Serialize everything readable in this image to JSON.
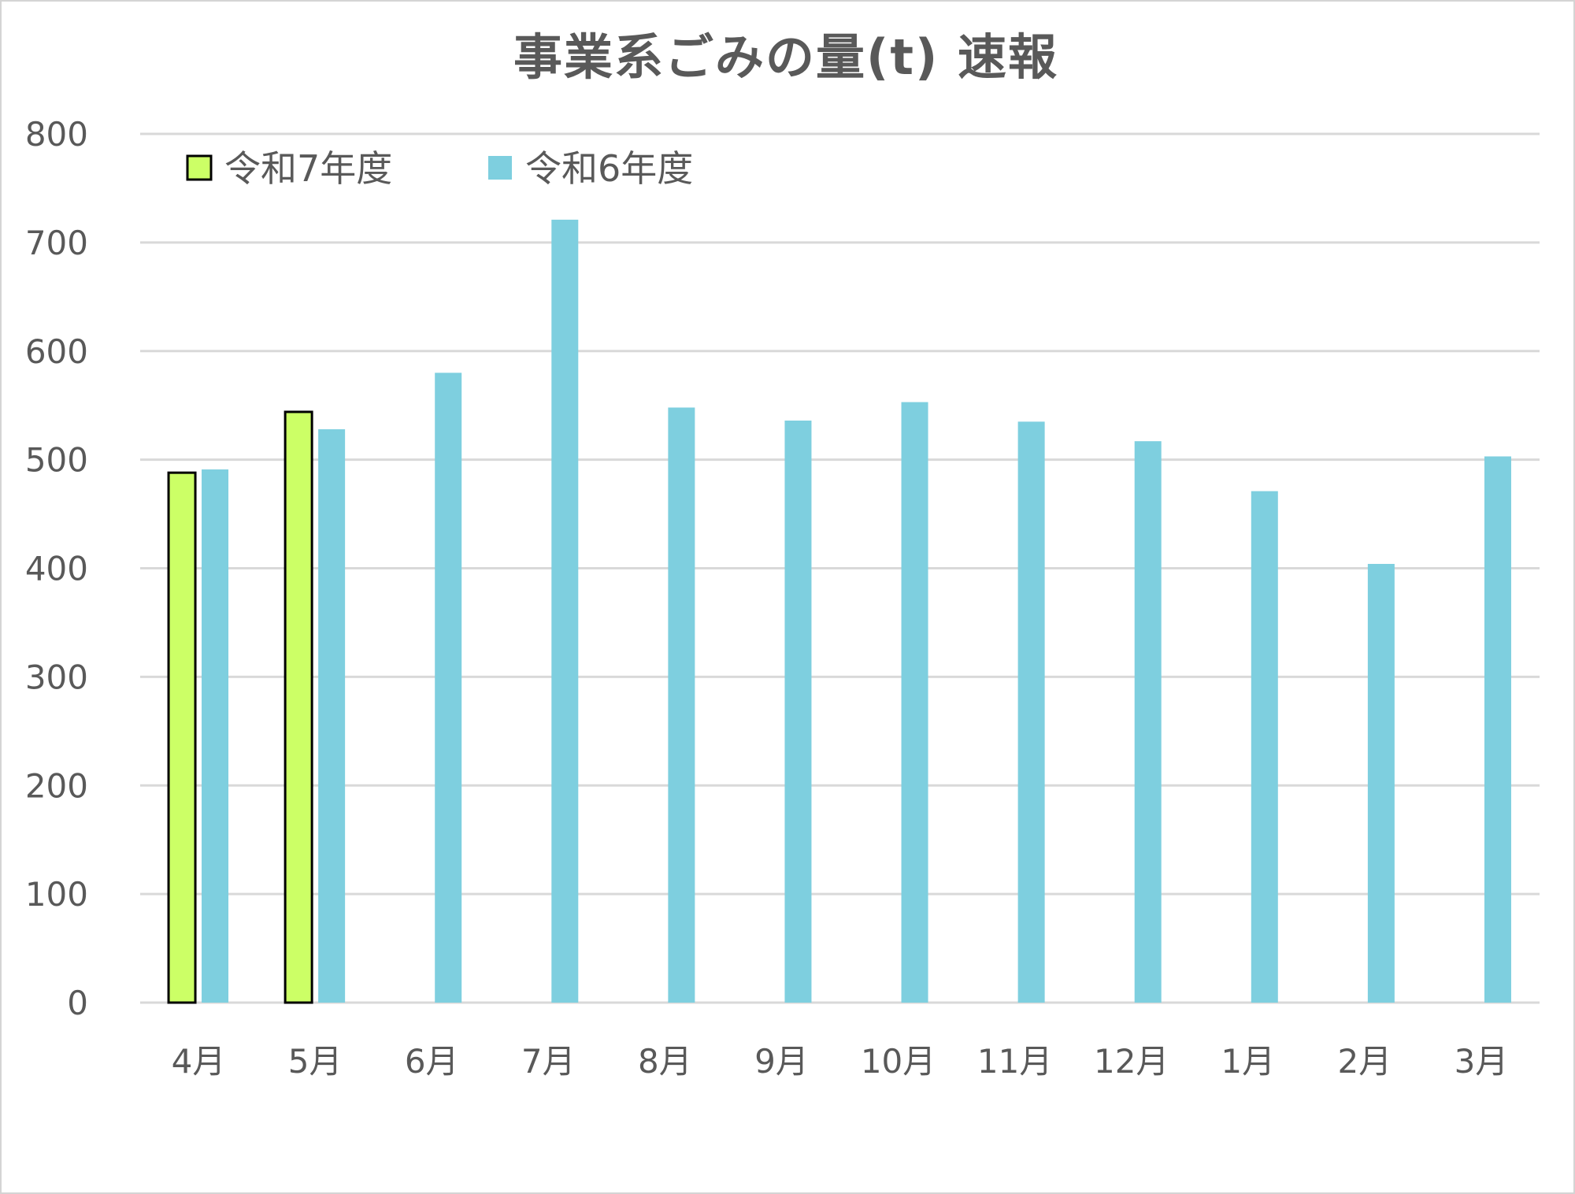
{
  "chart_data": {
    "type": "bar",
    "title": "事業系ごみの量(t) 速報",
    "xlabel": "",
    "ylabel": "",
    "ylim": [
      0,
      800
    ],
    "yticks": [
      0,
      100,
      200,
      300,
      400,
      500,
      600,
      700,
      800
    ],
    "grid": true,
    "legend_position": "top-left",
    "categories": [
      "4月",
      "5月",
      "6月",
      "7月",
      "8月",
      "9月",
      "10月",
      "11月",
      "12月",
      "1月",
      "2月",
      "3月"
    ],
    "series": [
      {
        "name": "令和7年度",
        "color": "#ccff66",
        "border": "#000000",
        "values": [
          488,
          544,
          null,
          null,
          null,
          null,
          null,
          null,
          null,
          null,
          null,
          null
        ]
      },
      {
        "name": "令和6年度",
        "color": "#7ecfdf",
        "border": "none",
        "values": [
          491,
          528,
          580,
          721,
          548,
          536,
          553,
          535,
          517,
          471,
          404,
          503
        ]
      }
    ]
  }
}
